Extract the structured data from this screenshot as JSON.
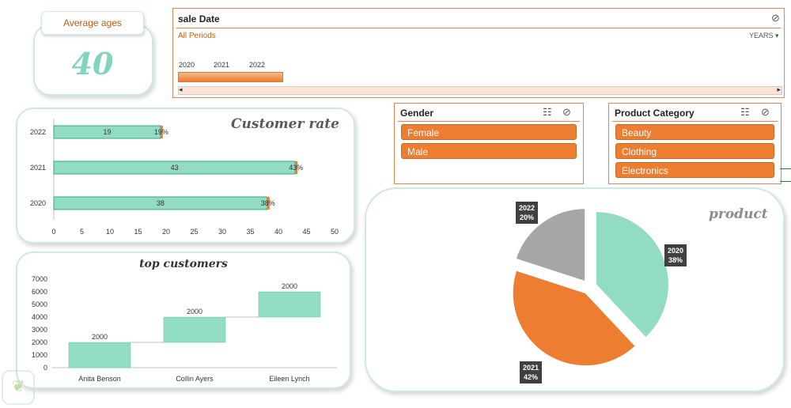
{
  "average_ages": {
    "title": "Average ages",
    "value": "40"
  },
  "timeline": {
    "title": "sale Date",
    "periods_label": "All Periods",
    "unit_label": "YEARS",
    "years": [
      "2020",
      "2021",
      "2022"
    ]
  },
  "customer_rate": {
    "title": "Customer rate",
    "chart_data": {
      "type": "bar",
      "orientation": "horizontal",
      "categories": [
        "2020",
        "2021",
        "2022"
      ],
      "values": [
        38,
        43,
        19
      ],
      "percent_labels": [
        "38%",
        "43%",
        "19%"
      ],
      "xlim": [
        0,
        50
      ],
      "xticks": [
        "0",
        "5",
        "10",
        "15",
        "20",
        "25",
        "30",
        "35",
        "40",
        "45",
        "50"
      ]
    }
  },
  "top_customers": {
    "title": "top customers",
    "chart_data": {
      "type": "waterfall",
      "categories": [
        "Anita Benson",
        "Collin Ayers",
        "Eileen Lynch"
      ],
      "values": [
        2000,
        2000,
        2000
      ],
      "ylim": [
        0,
        7000
      ],
      "yticks": [
        "0",
        "1000",
        "2000",
        "3000",
        "4000",
        "5000",
        "6000",
        "7000"
      ]
    }
  },
  "gender_slicer": {
    "title": "Gender",
    "items": [
      "Female",
      "Male"
    ]
  },
  "category_slicer": {
    "title": "Product Category",
    "items": [
      "Beauty",
      "Clothing",
      "Electronics"
    ]
  },
  "product": {
    "title": "product",
    "chart_data": {
      "type": "pie",
      "labels": [
        "2020",
        "2021",
        "2022"
      ],
      "values": [
        38,
        42,
        20
      ],
      "percent_labels": [
        "38%",
        "42%",
        "20%"
      ]
    }
  },
  "colors": {
    "accent": "#ed7d31",
    "mint": "#92dbc4",
    "gray": "#a6a6a6",
    "teal_text": "#7fd6bb"
  }
}
